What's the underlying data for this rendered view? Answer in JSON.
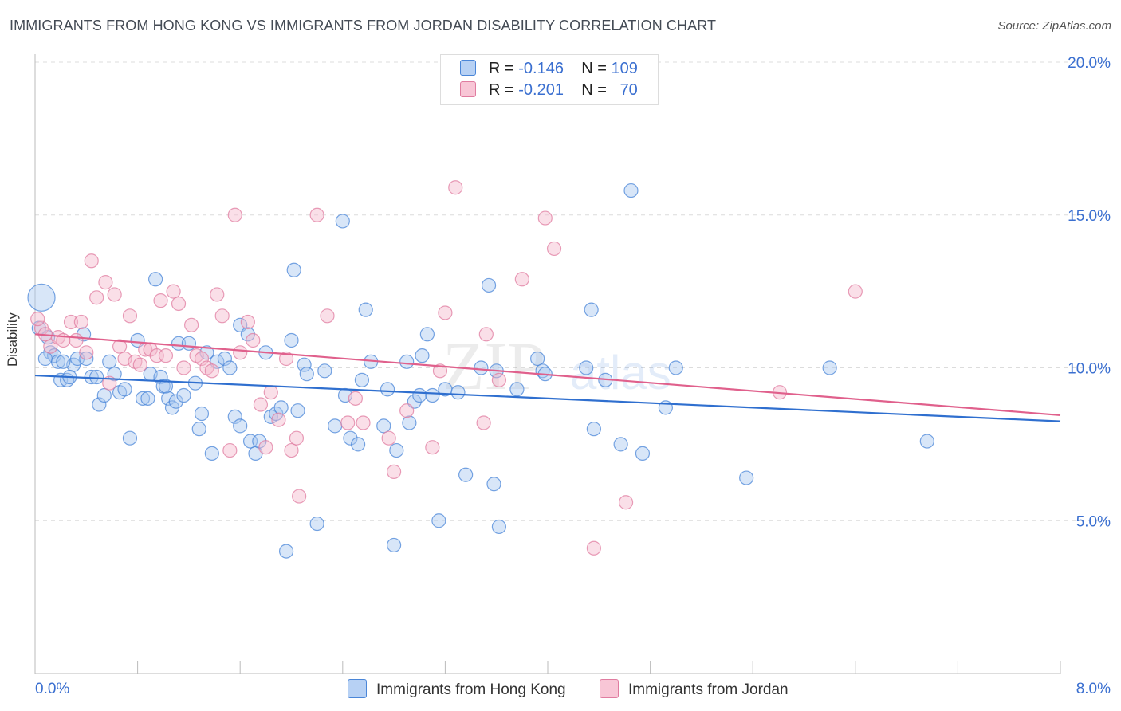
{
  "title": "IMMIGRANTS FROM HONG KONG VS IMMIGRANTS FROM JORDAN DISABILITY CORRELATION CHART",
  "source": "Source: ZipAtlas.com",
  "watermark": {
    "zip": "ZIP",
    "atlas": "atlas"
  },
  "legend_stats": [
    {
      "r_label": "R =",
      "r_value": "-0.146",
      "n_label": "N =",
      "n_value": "109"
    },
    {
      "r_label": "R =",
      "r_value": "-0.201",
      "n_label": "N =",
      "n_value": "70"
    }
  ],
  "colors": {
    "blue": "#4a86d8",
    "blue_fill": "#a9c8f0",
    "blue_line": "#2f6fcf",
    "pink": "#e07ca0",
    "pink_fill": "#f5b8cc",
    "pink_line": "#e0608c",
    "tick": "#3a6fd0"
  },
  "chart_data": {
    "type": "scatter",
    "title": "IMMIGRANTS FROM HONG KONG VS IMMIGRANTS FROM JORDAN DISABILITY CORRELATION CHART",
    "xlabel": "",
    "ylabel": "Disability",
    "xlim": [
      0,
      8
    ],
    "ylim": [
      0,
      20
    ],
    "x_tick_labels": [
      "0.0%",
      "8.0%"
    ],
    "y_ticks": [
      5,
      10,
      15,
      20
    ],
    "y_tick_labels": [
      "5.0%",
      "10.0%",
      "15.0%",
      "20.0%"
    ],
    "grid": "horizontal dashed",
    "legend_position": "bottom",
    "series": [
      {
        "name": "Immigrants from Hong Kong",
        "color": "#4a86d8",
        "trend": {
          "x": [
            0,
            8
          ],
          "y": [
            9.75,
            8.25
          ]
        },
        "points": [
          [
            0.05,
            12.3
          ],
          [
            0.1,
            11.0
          ],
          [
            0.12,
            10.5
          ],
          [
            0.15,
            10.4
          ],
          [
            0.18,
            10.2
          ],
          [
            0.2,
            9.6
          ],
          [
            0.25,
            9.6
          ],
          [
            0.3,
            10.1
          ],
          [
            0.33,
            10.3
          ],
          [
            0.38,
            11.1
          ],
          [
            0.4,
            10.3
          ],
          [
            0.44,
            9.7
          ],
          [
            0.48,
            9.7
          ],
          [
            0.5,
            8.8
          ],
          [
            0.54,
            9.1
          ],
          [
            0.58,
            10.2
          ],
          [
            0.62,
            9.8
          ],
          [
            0.66,
            9.2
          ],
          [
            0.7,
            9.3
          ],
          [
            0.74,
            7.7
          ],
          [
            0.8,
            10.9
          ],
          [
            0.84,
            9.0
          ],
          [
            0.88,
            9.0
          ],
          [
            0.9,
            9.8
          ],
          [
            0.94,
            12.9
          ],
          [
            0.98,
            9.7
          ],
          [
            1.0,
            9.4
          ],
          [
            1.04,
            9.0
          ],
          [
            1.07,
            8.7
          ],
          [
            1.1,
            8.9
          ],
          [
            1.12,
            10.8
          ],
          [
            1.16,
            9.1
          ],
          [
            1.2,
            10.8
          ],
          [
            1.25,
            9.5
          ],
          [
            1.28,
            8.0
          ],
          [
            1.3,
            8.5
          ],
          [
            1.34,
            10.5
          ],
          [
            1.38,
            7.2
          ],
          [
            1.42,
            10.2
          ],
          [
            1.48,
            10.3
          ],
          [
            1.52,
            10.0
          ],
          [
            1.56,
            8.4
          ],
          [
            1.6,
            8.1
          ],
          [
            1.6,
            11.4
          ],
          [
            1.66,
            11.1
          ],
          [
            1.68,
            7.6
          ],
          [
            1.72,
            7.2
          ],
          [
            1.75,
            7.6
          ],
          [
            1.8,
            10.5
          ],
          [
            1.84,
            8.4
          ],
          [
            1.88,
            8.5
          ],
          [
            1.92,
            8.7
          ],
          [
            1.96,
            4.0
          ],
          [
            2.0,
            10.9
          ],
          [
            2.02,
            13.2
          ],
          [
            2.05,
            8.6
          ],
          [
            2.1,
            10.1
          ],
          [
            2.12,
            9.8
          ],
          [
            2.2,
            4.9
          ],
          [
            2.26,
            9.9
          ],
          [
            2.34,
            8.1
          ],
          [
            2.4,
            14.8
          ],
          [
            2.42,
            9.1
          ],
          [
            2.46,
            7.7
          ],
          [
            2.52,
            7.5
          ],
          [
            2.55,
            9.6
          ],
          [
            2.58,
            11.9
          ],
          [
            2.62,
            10.2
          ],
          [
            2.72,
            8.1
          ],
          [
            2.75,
            9.3
          ],
          [
            2.8,
            4.2
          ],
          [
            2.82,
            7.3
          ],
          [
            2.9,
            10.2
          ],
          [
            2.92,
            8.2
          ],
          [
            2.96,
            8.9
          ],
          [
            3.0,
            9.1
          ],
          [
            3.02,
            10.4
          ],
          [
            3.06,
            11.1
          ],
          [
            3.1,
            9.1
          ],
          [
            3.15,
            5.0
          ],
          [
            3.2,
            9.3
          ],
          [
            3.3,
            9.2
          ],
          [
            3.36,
            6.5
          ],
          [
            3.48,
            10.0
          ],
          [
            3.54,
            12.7
          ],
          [
            3.58,
            6.2
          ],
          [
            3.6,
            9.9
          ],
          [
            3.62,
            4.8
          ],
          [
            3.76,
            9.3
          ],
          [
            3.92,
            10.3
          ],
          [
            3.96,
            9.9
          ],
          [
            3.98,
            9.8
          ],
          [
            4.3,
            10.0
          ],
          [
            4.34,
            11.9
          ],
          [
            4.36,
            8.0
          ],
          [
            4.45,
            9.6
          ],
          [
            4.57,
            7.5
          ],
          [
            4.65,
            15.8
          ],
          [
            4.74,
            7.2
          ],
          [
            4.92,
            8.7
          ],
          [
            5.0,
            10.0
          ],
          [
            5.55,
            6.4
          ],
          [
            6.2,
            10.0
          ],
          [
            6.96,
            7.6
          ],
          [
            0.03,
            11.3
          ],
          [
            0.08,
            10.3
          ],
          [
            0.22,
            10.2
          ],
          [
            0.27,
            9.7
          ],
          [
            1.02,
            9.4
          ]
        ]
      },
      {
        "name": "Immigrants from Jordan",
        "color": "#e07ca0",
        "trend": {
          "x": [
            0,
            8
          ],
          "y": [
            11.1,
            8.45
          ]
        },
        "points": [
          [
            0.05,
            11.3
          ],
          [
            0.08,
            11.1
          ],
          [
            0.12,
            10.7
          ],
          [
            0.18,
            11.0
          ],
          [
            0.22,
            10.9
          ],
          [
            0.28,
            11.5
          ],
          [
            0.32,
            10.9
          ],
          [
            0.36,
            11.5
          ],
          [
            0.4,
            10.5
          ],
          [
            0.44,
            13.5
          ],
          [
            0.48,
            12.3
          ],
          [
            0.55,
            12.8
          ],
          [
            0.58,
            9.5
          ],
          [
            0.62,
            12.4
          ],
          [
            0.66,
            10.7
          ],
          [
            0.7,
            10.3
          ],
          [
            0.74,
            11.7
          ],
          [
            0.78,
            10.2
          ],
          [
            0.82,
            10.1
          ],
          [
            0.86,
            10.6
          ],
          [
            0.9,
            10.6
          ],
          [
            0.95,
            10.4
          ],
          [
            0.98,
            12.2
          ],
          [
            1.02,
            10.4
          ],
          [
            1.08,
            12.5
          ],
          [
            1.12,
            12.1
          ],
          [
            1.16,
            10.0
          ],
          [
            1.22,
            11.4
          ],
          [
            1.26,
            10.4
          ],
          [
            1.3,
            10.3
          ],
          [
            1.34,
            10.0
          ],
          [
            1.38,
            9.9
          ],
          [
            1.42,
            12.4
          ],
          [
            1.46,
            11.7
          ],
          [
            1.52,
            7.3
          ],
          [
            1.56,
            15.0
          ],
          [
            1.6,
            10.5
          ],
          [
            1.66,
            11.5
          ],
          [
            1.7,
            10.9
          ],
          [
            1.76,
            8.8
          ],
          [
            1.8,
            7.4
          ],
          [
            1.84,
            9.2
          ],
          [
            1.9,
            8.3
          ],
          [
            1.96,
            10.3
          ],
          [
            2.0,
            7.3
          ],
          [
            2.04,
            7.7
          ],
          [
            2.06,
            5.8
          ],
          [
            2.2,
            15.0
          ],
          [
            2.28,
            11.7
          ],
          [
            2.44,
            8.2
          ],
          [
            2.5,
            9.0
          ],
          [
            2.56,
            8.2
          ],
          [
            2.76,
            7.7
          ],
          [
            2.8,
            6.6
          ],
          [
            2.9,
            8.6
          ],
          [
            3.1,
            7.4
          ],
          [
            3.16,
            9.9
          ],
          [
            3.2,
            11.8
          ],
          [
            3.28,
            15.9
          ],
          [
            3.5,
            8.2
          ],
          [
            3.52,
            11.1
          ],
          [
            3.62,
            9.6
          ],
          [
            3.8,
            12.9
          ],
          [
            3.98,
            14.9
          ],
          [
            4.05,
            13.9
          ],
          [
            4.36,
            4.1
          ],
          [
            4.61,
            5.6
          ],
          [
            5.81,
            9.2
          ],
          [
            6.4,
            12.5
          ],
          [
            0.02,
            11.6
          ]
        ]
      }
    ]
  },
  "legend": [
    {
      "label": "Immigrants from Hong Kong"
    },
    {
      "label": "Immigrants from Jordan"
    }
  ]
}
